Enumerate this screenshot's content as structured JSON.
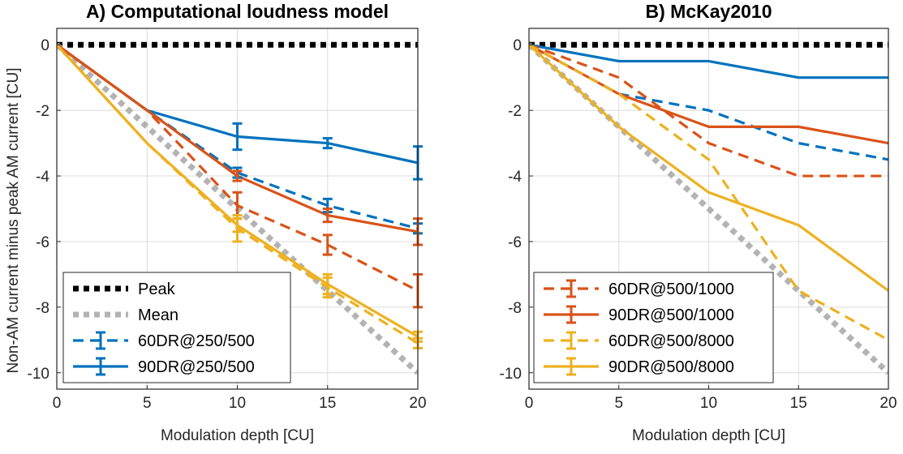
{
  "figure": {
    "ylabel": "Non-AM current minus peak AM current [CU]"
  },
  "chart_data": [
    {
      "type": "line",
      "panel": "A",
      "title": "A) Computational loudness model",
      "xlabel": "Modulation depth [CU]",
      "ylabel": "Non-AM current minus peak AM current [CU]",
      "xlim": [
        0,
        20
      ],
      "ylim": [
        -10.5,
        0.5
      ],
      "xticks": [
        0,
        5,
        10,
        15,
        20
      ],
      "yticks": [
        0,
        -2,
        -4,
        -6,
        -8,
        -10
      ],
      "grid": true,
      "legend_position": "bottom-left",
      "series": [
        {
          "name": "Peak",
          "style": "dotted-thick",
          "color": "#000000",
          "x": [
            0,
            5,
            10,
            15,
            20
          ],
          "y": [
            0,
            0,
            0,
            0,
            0
          ]
        },
        {
          "name": "Mean",
          "style": "dotted-thick",
          "color": "#b3b3b3",
          "x": [
            0,
            5,
            10,
            15,
            20
          ],
          "y": [
            0,
            -2.5,
            -5,
            -7.5,
            -10
          ]
        },
        {
          "name": "60DR@250/500",
          "style": "dashed",
          "color": "#0072bd",
          "x": [
            0,
            5,
            10,
            15,
            20
          ],
          "y": [
            0,
            -2,
            -3.9,
            -4.9,
            -5.6
          ],
          "err": [
            0,
            0,
            0.15,
            0.2,
            0.15
          ]
        },
        {
          "name": "90DR@250/500",
          "style": "solid",
          "color": "#0072bd",
          "x": [
            0,
            5,
            10,
            15,
            20
          ],
          "y": [
            0,
            -2,
            -2.8,
            -3,
            -3.6
          ],
          "err": [
            0,
            0,
            0.4,
            0.15,
            0.5
          ]
        },
        {
          "name": "",
          "style": "dashed",
          "color": "#d95319",
          "x": [
            0,
            5,
            10,
            15,
            20
          ],
          "y": [
            0,
            -2,
            -4.9,
            -6.1,
            -7.5
          ],
          "err": [
            0,
            0,
            0.4,
            0.3,
            0.5
          ]
        },
        {
          "name": "",
          "style": "solid",
          "color": "#d95319",
          "x": [
            0,
            5,
            10,
            15,
            20
          ],
          "y": [
            0,
            -2,
            -4,
            -5.2,
            -5.7
          ],
          "err": [
            0,
            0,
            0.15,
            0.2,
            0.4
          ]
        },
        {
          "name": "",
          "style": "dashed",
          "color": "#edb120",
          "x": [
            0,
            5,
            10,
            15,
            20
          ],
          "y": [
            0,
            -3,
            -5.6,
            -7.4,
            -9.1
          ],
          "err": [
            0,
            0,
            0.4,
            0.3,
            0.15
          ]
        },
        {
          "name": "",
          "style": "solid",
          "color": "#edb120",
          "x": [
            0,
            5,
            10,
            15,
            20
          ],
          "y": [
            0,
            -3,
            -5.5,
            -7.3,
            -8.9
          ],
          "err": [
            0,
            0,
            0.2,
            0.3,
            0.15
          ]
        }
      ]
    },
    {
      "type": "line",
      "panel": "B",
      "title": "B) McKay2010",
      "xlabel": "Modulation depth [CU]",
      "ylabel": "",
      "xlim": [
        0,
        20
      ],
      "ylim": [
        -10.5,
        0.5
      ],
      "xticks": [
        0,
        5,
        10,
        15,
        20
      ],
      "yticks": [
        0,
        -2,
        -4,
        -6,
        -8,
        -10
      ],
      "grid": true,
      "legend_position": "bottom-left",
      "series": [
        {
          "name": "",
          "style": "dotted-thick",
          "color": "#000000",
          "x": [
            0,
            5,
            10,
            15,
            20
          ],
          "y": [
            0,
            0,
            0,
            0,
            0
          ]
        },
        {
          "name": "",
          "style": "dotted-thick",
          "color": "#b3b3b3",
          "x": [
            0,
            5,
            10,
            15,
            20
          ],
          "y": [
            0,
            -2.5,
            -5,
            -7.5,
            -10
          ]
        },
        {
          "name": "",
          "style": "solid",
          "color": "#0072bd",
          "x": [
            0,
            5,
            10,
            15,
            20
          ],
          "y": [
            0,
            -0.5,
            -0.5,
            -1,
            -1
          ]
        },
        {
          "name": "",
          "style": "dashed",
          "color": "#0072bd",
          "x": [
            0,
            5,
            10,
            15,
            20
          ],
          "y": [
            0,
            -1.5,
            -2,
            -3,
            -3.5
          ]
        },
        {
          "name": "60DR@500/1000",
          "style": "dashed",
          "color": "#d95319",
          "x": [
            0,
            5,
            10,
            15,
            20
          ],
          "y": [
            0,
            -1,
            -3,
            -4,
            -4
          ],
          "err": [
            0,
            0,
            0,
            0,
            0
          ]
        },
        {
          "name": "90DR@500/1000",
          "style": "solid",
          "color": "#d95319",
          "x": [
            0,
            5,
            10,
            15,
            20
          ],
          "y": [
            0,
            -1.5,
            -2.5,
            -2.5,
            -3
          ],
          "err": [
            0,
            0,
            0,
            0,
            0
          ]
        },
        {
          "name": "60DR@500/8000",
          "style": "dashed",
          "color": "#edb120",
          "x": [
            0,
            5,
            10,
            15,
            20
          ],
          "y": [
            0,
            -1.5,
            -3.5,
            -7.5,
            -9
          ],
          "err": [
            0,
            0,
            0,
            0,
            0
          ]
        },
        {
          "name": "90DR@500/8000",
          "style": "solid",
          "color": "#edb120",
          "x": [
            0,
            5,
            10,
            15,
            20
          ],
          "y": [
            0,
            -2.5,
            -4.5,
            -5.5,
            -7.5
          ],
          "err": [
            0,
            0,
            0,
            0,
            0
          ]
        }
      ]
    }
  ]
}
